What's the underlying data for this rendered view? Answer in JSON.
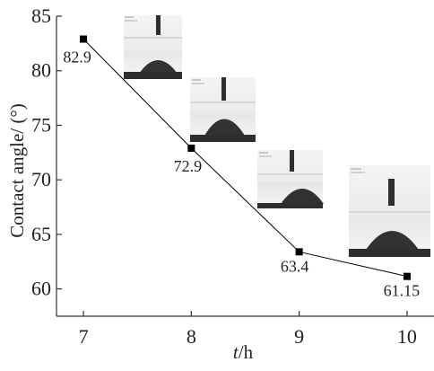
{
  "chart_data": {
    "type": "line",
    "title": "",
    "xlabel": {
      "italic": "t",
      "rest": "/h"
    },
    "ylabel": "Contact angle/ (°)",
    "xlim": [
      6.75,
      10.25
    ],
    "ylim": [
      57.5,
      85
    ],
    "xticks": [
      7,
      8,
      9,
      10
    ],
    "yticks": [
      60,
      65,
      70,
      75,
      80,
      85
    ],
    "grid": false,
    "x": [
      7,
      8,
      9,
      10
    ],
    "series": [
      {
        "name": "",
        "values": [
          82.9,
          72.9,
          63.4,
          61.15
        ],
        "labels": [
          "82.9",
          "72.9",
          "63.4",
          "61.15"
        ],
        "marker": "square",
        "color": "#000000"
      }
    ]
  }
}
